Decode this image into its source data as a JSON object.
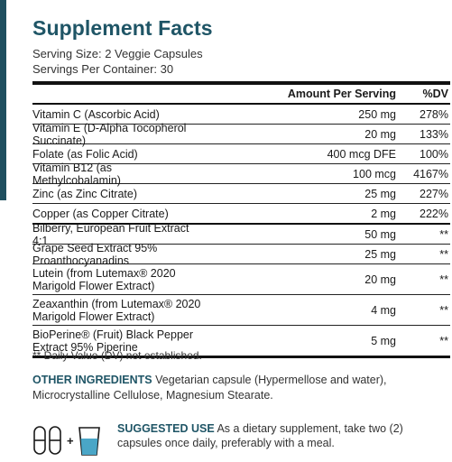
{
  "title": "Supplement Facts",
  "serving_size": "Serving Size: 2 Veggie Capsules",
  "servings_per_container": "Servings Per Container: 30",
  "header": {
    "amount": "Amount Per Serving",
    "dv": "%DV"
  },
  "rows": [
    {
      "name": "Vitamin C (Ascorbic Acid)",
      "amount": "250 mg",
      "dv": "278%"
    },
    {
      "name": "Vitamin E (D-Alpha Tocopherol Succinate)",
      "amount": "20 mg",
      "dv": "133%"
    },
    {
      "name": "Folate (as Folic Acid)",
      "amount": "400 mcg DFE",
      "dv": "100%"
    },
    {
      "name": "Vitamin B12 (as Methylcobalamin)",
      "amount": "100 mcg",
      "dv": "4167%"
    },
    {
      "name": "Zinc (as Zinc Citrate)",
      "amount": "25 mg",
      "dv": "227%"
    },
    {
      "name": "Copper (as Copper Citrate)",
      "amount": "2 mg",
      "dv": "222%"
    },
    {
      "name": "Bilberry, European Fruit Extract 4:1",
      "amount": "50 mg",
      "dv": "**"
    },
    {
      "name": "Grape Seed Extract 95% Proanthocyanadins",
      "amount": "25 mg",
      "dv": "**"
    },
    {
      "name": "Lutein (from Lutemax® 2020 Marigold Flower Extract)",
      "amount": "20 mg",
      "dv": "**"
    },
    {
      "name": "Zeaxanthin (from Lutemax® 2020 Marigold Flower Extract)",
      "amount": "4 mg",
      "dv": "**"
    },
    {
      "name": "BioPerine® (Fruit) Black Pepper Extract 95% Piperine",
      "amount": "5 mg",
      "dv": "**"
    }
  ],
  "footnote": "** Daily Value (DV) not established.",
  "other_ingredients": {
    "label": "OTHER INGREDIENTS",
    "text": "Vegetarian capsule (Hypermellose and water), Microcrystalline Cellulose, Magnesium Stearate."
  },
  "suggested_use": {
    "label": "SUGGESTED USE",
    "text": "As a dietary supplement, take two (2) capsules once daily, preferably with a meal."
  },
  "icons": {
    "plus": "+"
  }
}
